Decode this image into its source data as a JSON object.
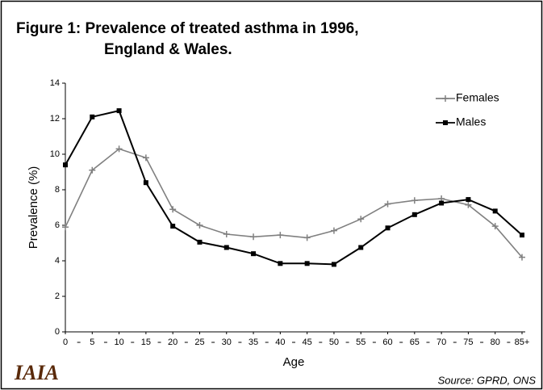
{
  "chart_data": {
    "type": "line",
    "title": "Figure 1:  Prevalence of treated asthma in 1996,",
    "subtitle": "England & Wales.",
    "x_label": "Age",
    "y_label": "Prevalence (%)",
    "source": "Source:  GPRD, ONS",
    "logo": "IAIA",
    "categories": [
      "0",
      "5",
      "10",
      "15",
      "20",
      "25",
      "30",
      "35",
      "40",
      "45",
      "50",
      "55",
      "60",
      "65",
      "70",
      "75",
      "80",
      "85+"
    ],
    "series": [
      {
        "name": "Females",
        "color": "#808080",
        "marker": "plus",
        "values": [
          5.9,
          9.1,
          10.3,
          9.8,
          6.9,
          6.0,
          5.5,
          5.35,
          5.45,
          5.3,
          5.7,
          6.35,
          7.2,
          7.4,
          7.5,
          7.15,
          5.95,
          4.2
        ]
      },
      {
        "name": "Males",
        "color": "#000000",
        "marker": "square",
        "values": [
          9.4,
          12.1,
          12.45,
          8.4,
          5.95,
          5.05,
          4.75,
          4.4,
          3.85,
          3.85,
          3.8,
          4.75,
          5.85,
          6.6,
          7.25,
          7.45,
          6.8,
          5.45
        ]
      }
    ],
    "ylim": [
      0,
      14
    ],
    "yticks": [
      0,
      2,
      4,
      6,
      8,
      10,
      12,
      14
    ],
    "grid": false,
    "legend": "upper right"
  }
}
